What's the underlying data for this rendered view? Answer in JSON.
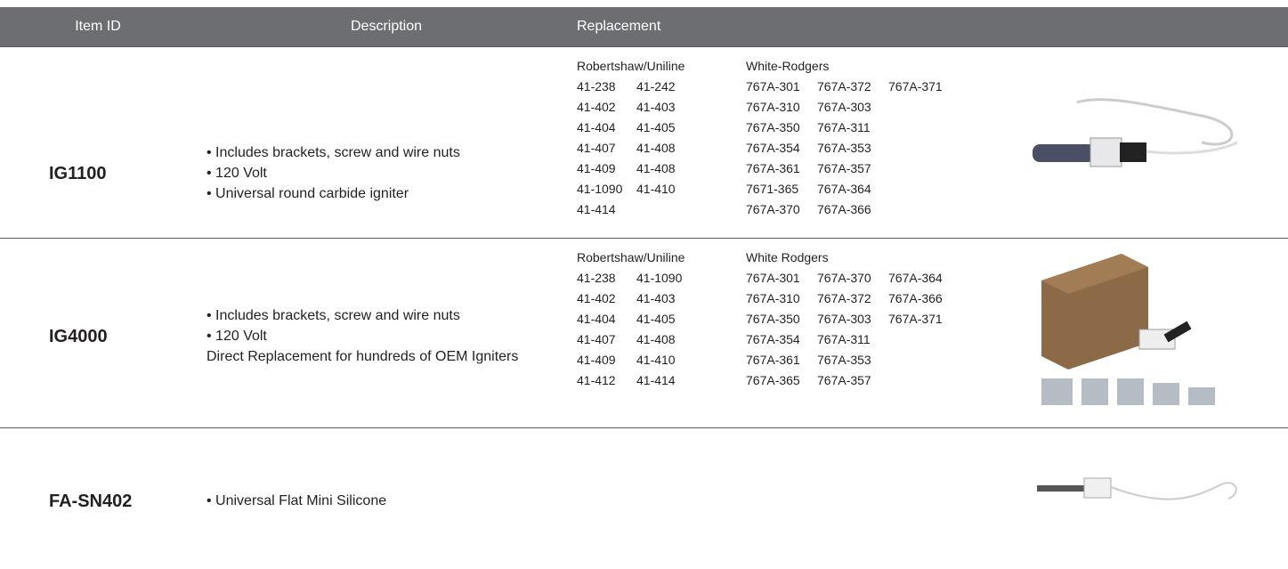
{
  "header": {
    "item_id": "Item ID",
    "description": "Description",
    "replacement": "Replacement"
  },
  "rows": [
    {
      "item_id": "IG1100",
      "description": [
        "• Includes brackets, screw and wire nuts",
        "• 120 Volt",
        "• Universal round carbide igniter"
      ],
      "replacement": [
        {
          "brand": "Robertshaw/Uniline",
          "lines": [
            [
              "41-238",
              "41-242"
            ],
            [
              "41-402",
              "41-403"
            ],
            [
              "41-404",
              "41-405"
            ],
            [
              "41-407",
              "41-408"
            ],
            [
              "41-409",
              "41-408"
            ],
            [
              "41-1090",
              "41-410"
            ],
            [
              "41-414"
            ]
          ]
        },
        {
          "brand": "White-Rodgers",
          "lines": [
            [
              "767A-301",
              "767A-372",
              "767A-371"
            ],
            [
              "767A-310",
              "767A-303"
            ],
            [
              "767A-350",
              "767A-311"
            ],
            [
              "767A-354",
              "767A-353"
            ],
            [
              "767A-361",
              "767A-357"
            ],
            [
              "7671-365",
              "767A-364"
            ],
            [
              "767A-370",
              "767A-366"
            ]
          ]
        }
      ]
    },
    {
      "item_id": "IG4000",
      "description": [
        "• Includes brackets, screw and wire nuts",
        "• 120 Volt",
        "Direct Replacement for hundreds of OEM Igniters"
      ],
      "replacement": [
        {
          "brand": "Robertshaw/Uniline",
          "lines": [
            [
              "41-238",
              "41-1090"
            ],
            [
              "41-402",
              "41-403"
            ],
            [
              "41-404",
              "41-405"
            ],
            [
              "41-407",
              "41-408"
            ],
            [
              "41-409",
              "41-410"
            ],
            [
              "41-412",
              "41-414"
            ]
          ]
        },
        {
          "brand": "White Rodgers",
          "lines": [
            [
              "767A-301",
              "767A-370",
              "767A-364"
            ],
            [
              "767A-310",
              "767A-372",
              "767A-366"
            ],
            [
              "767A-350",
              "767A-303",
              "767A-371"
            ],
            [
              "767A-354",
              "767A-311"
            ],
            [
              "767A-361",
              "767A-353"
            ],
            [
              "767A-365",
              "767A-357"
            ]
          ]
        }
      ]
    },
    {
      "item_id": "FA-SN402",
      "description": [
        "• Universal Flat Mini Silicone"
      ],
      "replacement": []
    }
  ]
}
